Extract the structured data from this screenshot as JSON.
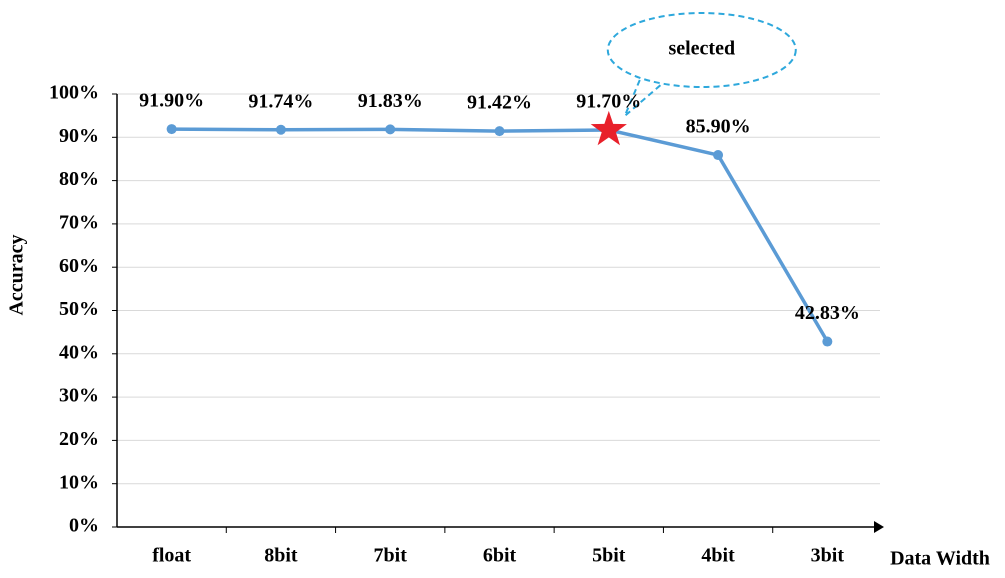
{
  "chart_data": {
    "type": "line",
    "x_label": "Data Width",
    "y_label": "Accuracy",
    "categories": [
      "float",
      "8bit",
      "7bit",
      "6bit",
      "5bit",
      "4bit",
      "3bit"
    ],
    "values": [
      91.9,
      91.74,
      91.83,
      91.42,
      91.7,
      85.9,
      42.83
    ],
    "value_labels": [
      "91.90%",
      "91.74%",
      "91.83%",
      "91.42%",
      "91.70%",
      "85.90%",
      "42.83%"
    ],
    "color": "#5b9bd5",
    "highlight_index": 4,
    "highlight_color": "#e8202a",
    "annotation": "selected",
    "ylim": [
      0,
      100
    ],
    "yticks": [
      {
        "value": 0,
        "label": "0%"
      },
      {
        "value": 10,
        "label": "10%"
      },
      {
        "value": 20,
        "label": "20%"
      },
      {
        "value": 30,
        "label": "30%"
      },
      {
        "value": 40,
        "label": "40%"
      },
      {
        "value": 50,
        "label": "50%"
      },
      {
        "value": 60,
        "label": "60%"
      },
      {
        "value": 70,
        "label": "70%"
      },
      {
        "value": 80,
        "label": "80%"
      },
      {
        "value": 90,
        "label": "90%"
      },
      {
        "value": 100,
        "label": "100%"
      }
    ],
    "grid": true
  }
}
